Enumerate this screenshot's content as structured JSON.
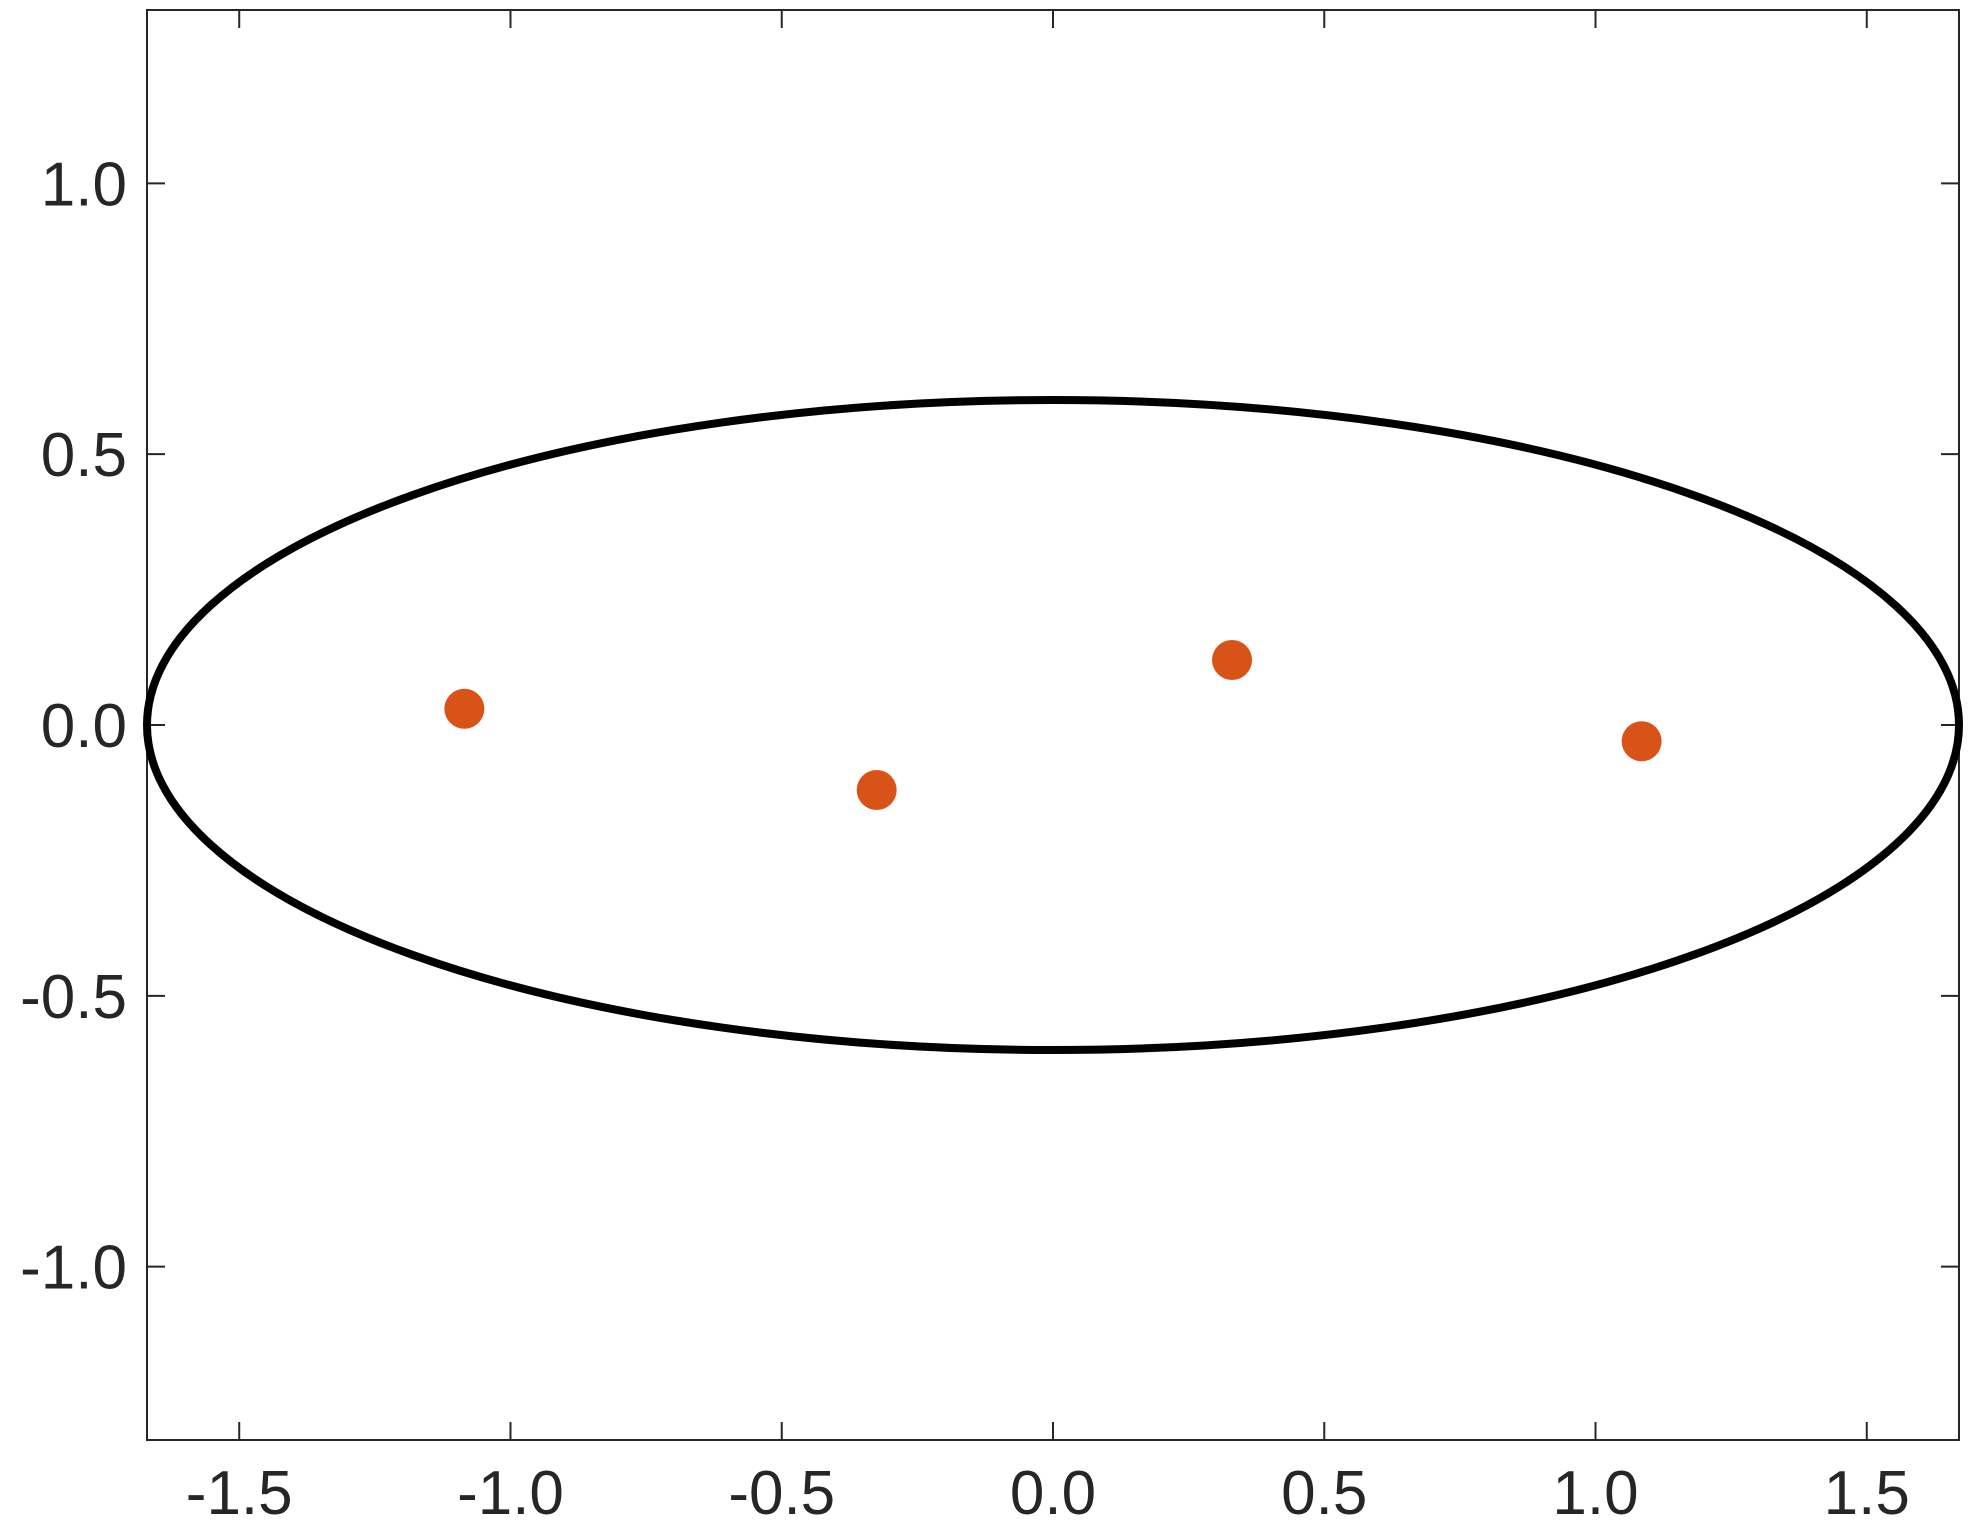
{
  "chart_data": {
    "type": "scatter",
    "title": "",
    "xlabel": "",
    "ylabel": "",
    "xlim": [
      -1.67,
      1.67
    ],
    "ylim": [
      -1.32,
      1.32
    ],
    "grid": false,
    "x_ticks": [
      -1.5,
      -1.0,
      -0.5,
      0.0,
      0.5,
      1.0,
      1.5
    ],
    "x_tick_labels": [
      "-1.5",
      "-1.0",
      "-0.5",
      "0.0",
      "0.5",
      "1.0",
      "1.5"
    ],
    "y_ticks": [
      -1.0,
      -0.5,
      0.0,
      0.5,
      1.0
    ],
    "y_tick_labels": [
      "-1.0",
      "-0.5",
      "0.0",
      "0.5",
      "1.0"
    ],
    "series": [
      {
        "type": "scatter",
        "color": "#D95319",
        "points": [
          {
            "x": -1.085,
            "y": 0.03
          },
          {
            "x": -0.325,
            "y": -0.12
          },
          {
            "x": 0.33,
            "y": 0.12
          },
          {
            "x": 1.085,
            "y": -0.03
          }
        ]
      }
    ],
    "shapes": [
      {
        "type": "ellipse",
        "center": [
          0.0,
          0.0
        ],
        "semi_axes": [
          1.67,
          0.6
        ],
        "color": "#000000"
      }
    ]
  }
}
